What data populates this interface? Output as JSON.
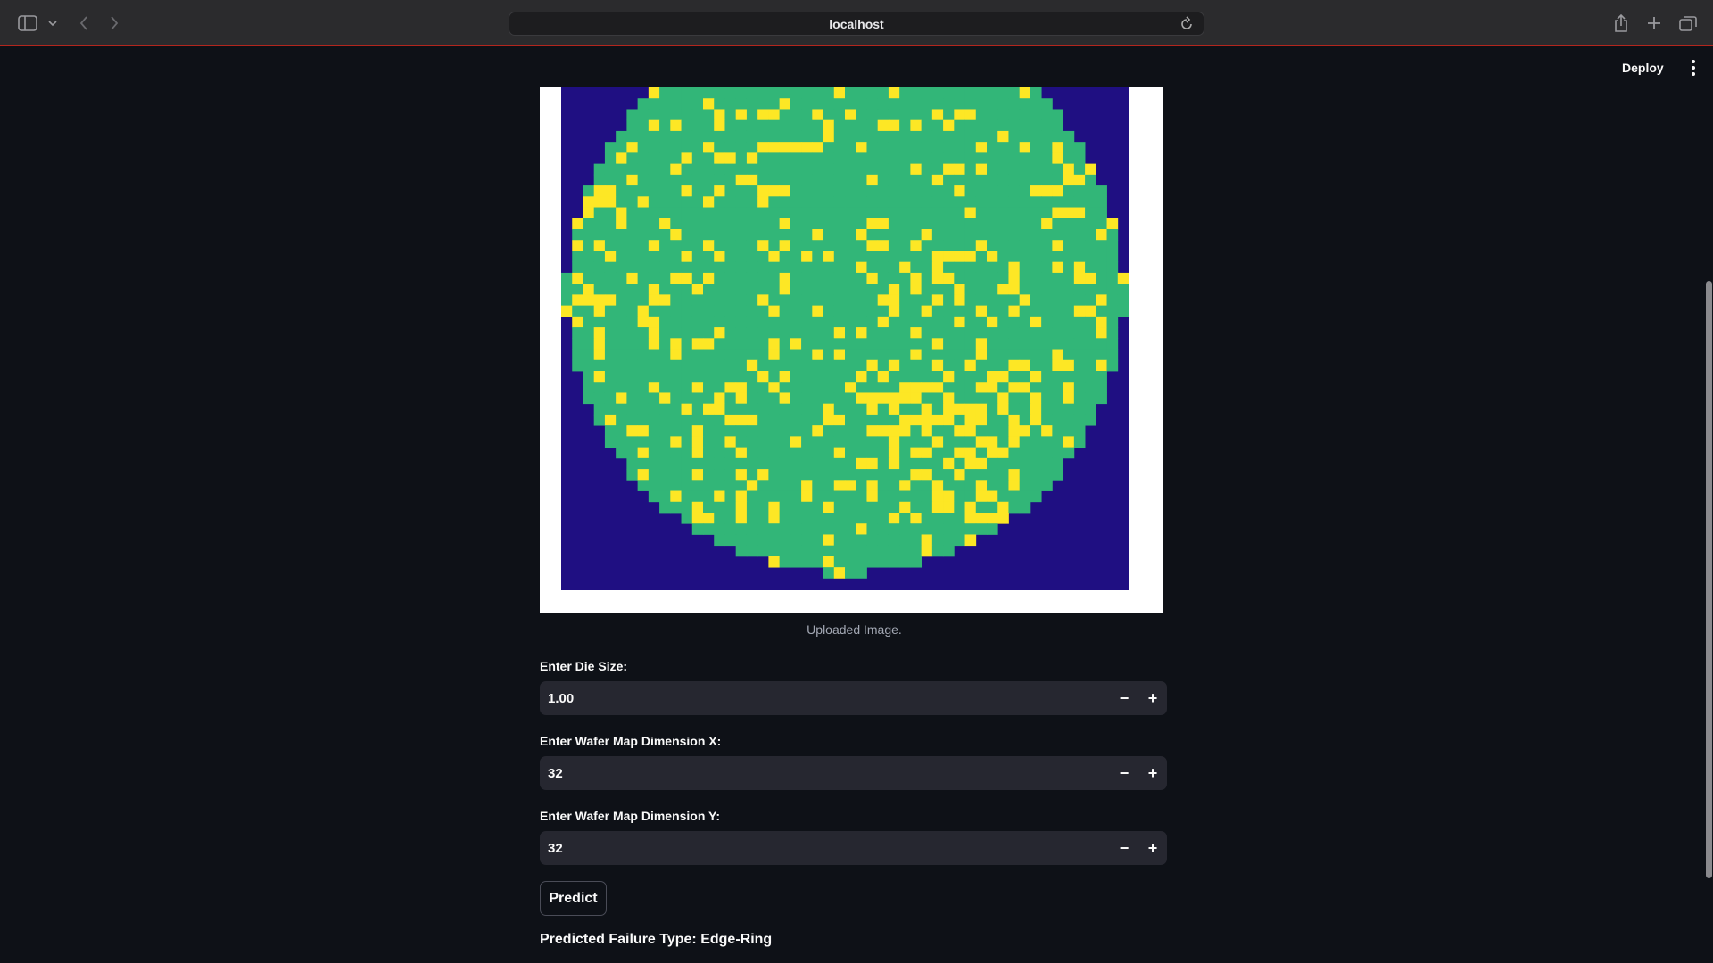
{
  "browser": {
    "url": "localhost"
  },
  "header": {
    "deploy_label": "Deploy"
  },
  "image": {
    "caption": "Uploaded Image.",
    "colors": {
      "background": "#1f0f82",
      "pass": "#32b678",
      "fail": "#fde725"
    }
  },
  "fields": [
    {
      "label": "Enter Die Size:",
      "value": "1.00"
    },
    {
      "label": "Enter Wafer Map Dimension X:",
      "value": "32"
    },
    {
      "label": "Enter Wafer Map Dimension Y:",
      "value": "32"
    }
  ],
  "stepper": {
    "minus": "−",
    "plus": "+"
  },
  "predict_label": "Predict",
  "result_text": "Predicted Failure Type: Edge-Ring"
}
